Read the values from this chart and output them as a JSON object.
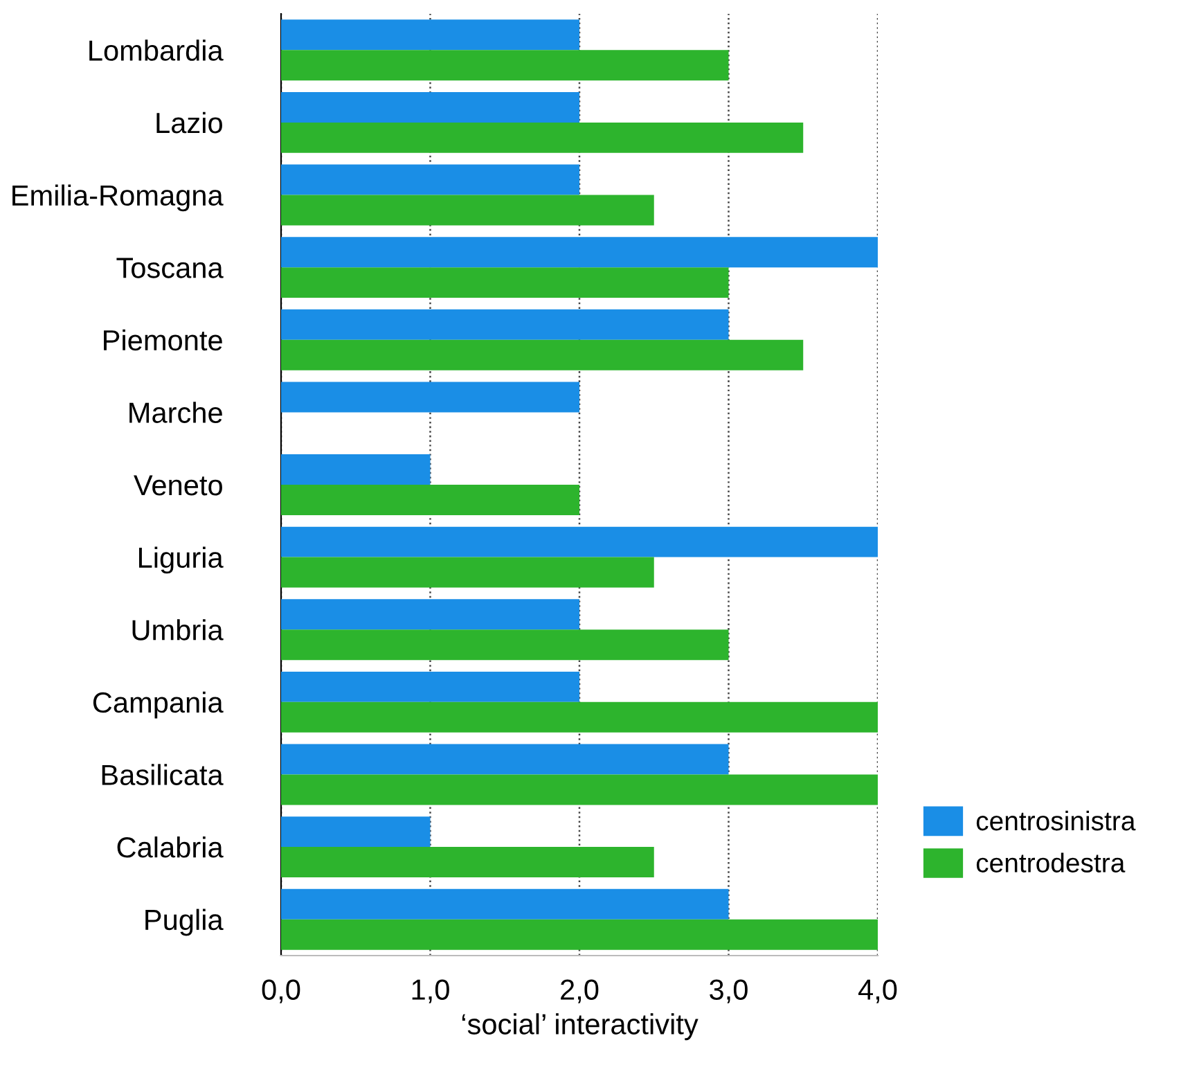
{
  "chart_data": {
    "type": "bar",
    "orientation": "horizontal",
    "xlabel": "‘social’ interactivity",
    "categories": [
      "Lombardia",
      "Lazio",
      "Emilia-Romagna",
      "Toscana",
      "Piemonte",
      "Marche",
      "Veneto",
      "Liguria",
      "Umbria",
      "Campania",
      "Basilicata",
      "Calabria",
      "Puglia"
    ],
    "series": [
      {
        "name": "centrosinistra",
        "color": "#1a8ee6",
        "values": [
          2,
          2,
          2,
          4,
          3,
          2,
          1,
          4,
          2,
          2,
          3,
          1,
          3
        ]
      },
      {
        "name": "centrodestra",
        "color": "#2db42d",
        "values": [
          3,
          3.5,
          2.5,
          3,
          3.5,
          null,
          2,
          2.5,
          3,
          4,
          4,
          2.5,
          4
        ]
      }
    ],
    "xlim": [
      0,
      4
    ],
    "xticks": [
      {
        "value": 0,
        "label": "0,0"
      },
      {
        "value": 1,
        "label": "1,0"
      },
      {
        "value": 2,
        "label": "2,0"
      },
      {
        "value": 3,
        "label": "3,0"
      },
      {
        "value": 4,
        "label": "4,0"
      }
    ],
    "grid": "x",
    "legend": "right"
  }
}
